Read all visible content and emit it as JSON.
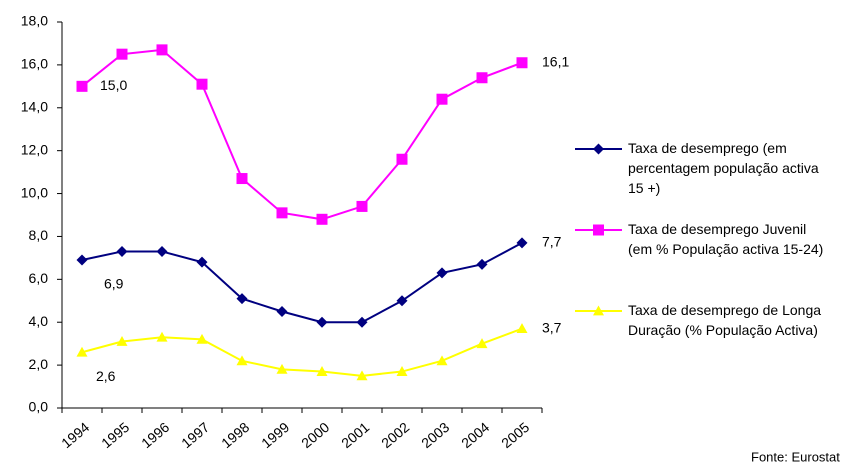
{
  "chart_data": {
    "type": "line",
    "source": "Fonte: Eurostat",
    "categories": [
      "1994",
      "1995",
      "1996",
      "1997",
      "1998",
      "1999",
      "2000",
      "2001",
      "2002",
      "2003",
      "2004",
      "2005"
    ],
    "series": [
      {
        "name": "Taxa de desemprego (em percentagem população activa 15 +)",
        "color": "#000080",
        "marker": "diamond",
        "values": [
          6.9,
          7.3,
          7.3,
          6.8,
          5.1,
          4.5,
          4.0,
          4.0,
          5.0,
          6.3,
          6.7,
          7.7
        ],
        "value_labels": [
          "6,9",
          null,
          null,
          null,
          null,
          null,
          null,
          null,
          null,
          null,
          null,
          "7,7"
        ]
      },
      {
        "name": "Taxa de desemprego Juvenil (em % População activa 15-24)",
        "color": "#ff00ff",
        "marker": "square",
        "values": [
          15.0,
          16.5,
          16.7,
          15.1,
          10.7,
          9.1,
          8.8,
          9.4,
          11.6,
          14.4,
          15.4,
          16.1
        ],
        "value_labels": [
          "15,0",
          null,
          null,
          null,
          null,
          null,
          null,
          null,
          null,
          null,
          null,
          "16,1"
        ]
      },
      {
        "name": "Taxa de desemprego de Longa Duração (% População Activa)",
        "color": "#ffff00",
        "marker": "triangle",
        "values": [
          2.6,
          3.1,
          3.3,
          3.2,
          2.2,
          1.8,
          1.7,
          1.5,
          1.7,
          2.2,
          3.0,
          3.7
        ],
        "value_labels": [
          "2,6",
          null,
          null,
          null,
          null,
          null,
          null,
          null,
          null,
          null,
          null,
          "3,7"
        ]
      }
    ],
    "ylim": [
      0,
      18
    ],
    "yticks": [
      {
        "value": 0,
        "label": "0,0"
      },
      {
        "value": 2,
        "label": "2,0"
      },
      {
        "value": 4,
        "label": "4,0"
      },
      {
        "value": 6,
        "label": "6,0"
      },
      {
        "value": 8,
        "label": "8,0"
      },
      {
        "value": 10,
        "label": "10,0"
      },
      {
        "value": 12,
        "label": "12,0"
      },
      {
        "value": 14,
        "label": "14,0"
      },
      {
        "value": 16,
        "label": "16,0"
      },
      {
        "value": 18,
        "label": "18,0"
      }
    ],
    "grid": false,
    "legend": "right"
  }
}
